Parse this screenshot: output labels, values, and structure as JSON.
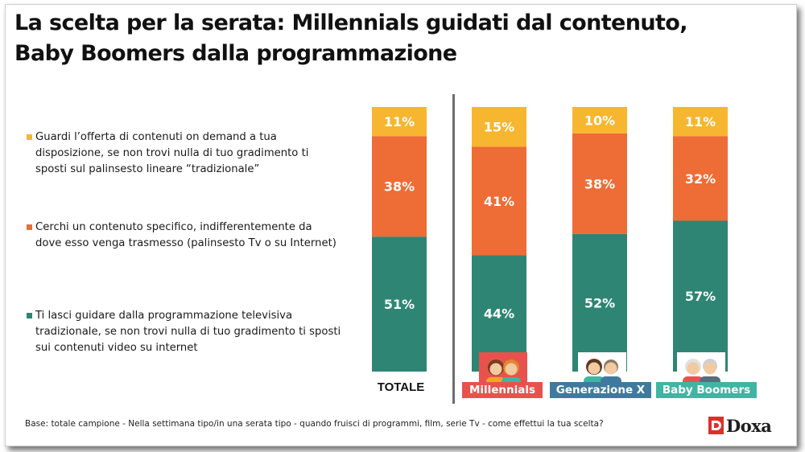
{
  "title": {
    "line1": "La scelta per la serata: Millennials  guidati dal contenuto,",
    "line2": "Baby Boomers dalla programmazione"
  },
  "legend": [
    {
      "key": "on_demand",
      "color": "#F7B630",
      "text": "Guardi l’offerta di contenuti on demand a tua disposizione, se non trovi nulla di tuo gradimento ti sposti sul palinsesto lineare “tradizionale”"
    },
    {
      "key": "contenuto",
      "color": "#EE6C35",
      "text": "Cerchi un contenuto specifico, indifferentemente da dove esso venga trasmesso (palinsesto Tv o su Internet)"
    },
    {
      "key": "programmazione",
      "color": "#2E8573",
      "text": "Ti lasci guidare dalla programmazione televisiva tradizionale, se non trovi nulla di tuo gradimento ti sposti sui contenuti video su internet"
    }
  ],
  "chart_data": {
    "type": "bar",
    "stacked": true,
    "unit": "%",
    "categories": [
      "TOTALE",
      "Millennials",
      "Generazione X",
      "Baby Boomers"
    ],
    "series": [
      {
        "name": "Ti lasci guidare dalla programmazione televisiva tradizionale",
        "color": "#2E8573",
        "values": [
          51,
          44,
          52,
          57
        ]
      },
      {
        "name": "Cerchi un contenuto specifico",
        "color": "#EE6C35",
        "values": [
          38,
          41,
          38,
          32
        ]
      },
      {
        "name": "Guardi l’offerta di contenuti on demand",
        "color": "#F7B630",
        "values": [
          11,
          15,
          10,
          11
        ]
      }
    ],
    "category_label_colors": [
      "#ffffff",
      "#E8524D",
      "#3F7A9E",
      "#3FB5A3"
    ]
  },
  "labels": {
    "totale": "TOTALE",
    "millennials": "Millennials",
    "genx": "Generazione X",
    "boomers": "Baby Boomers"
  },
  "footnote": "Base: totale campione - Nella settimana tipo/in una serata tipo - quando fruisci di programmi, film, serie Tv - come effettui la tua scelta?",
  "logo": {
    "text": "Doxa"
  }
}
